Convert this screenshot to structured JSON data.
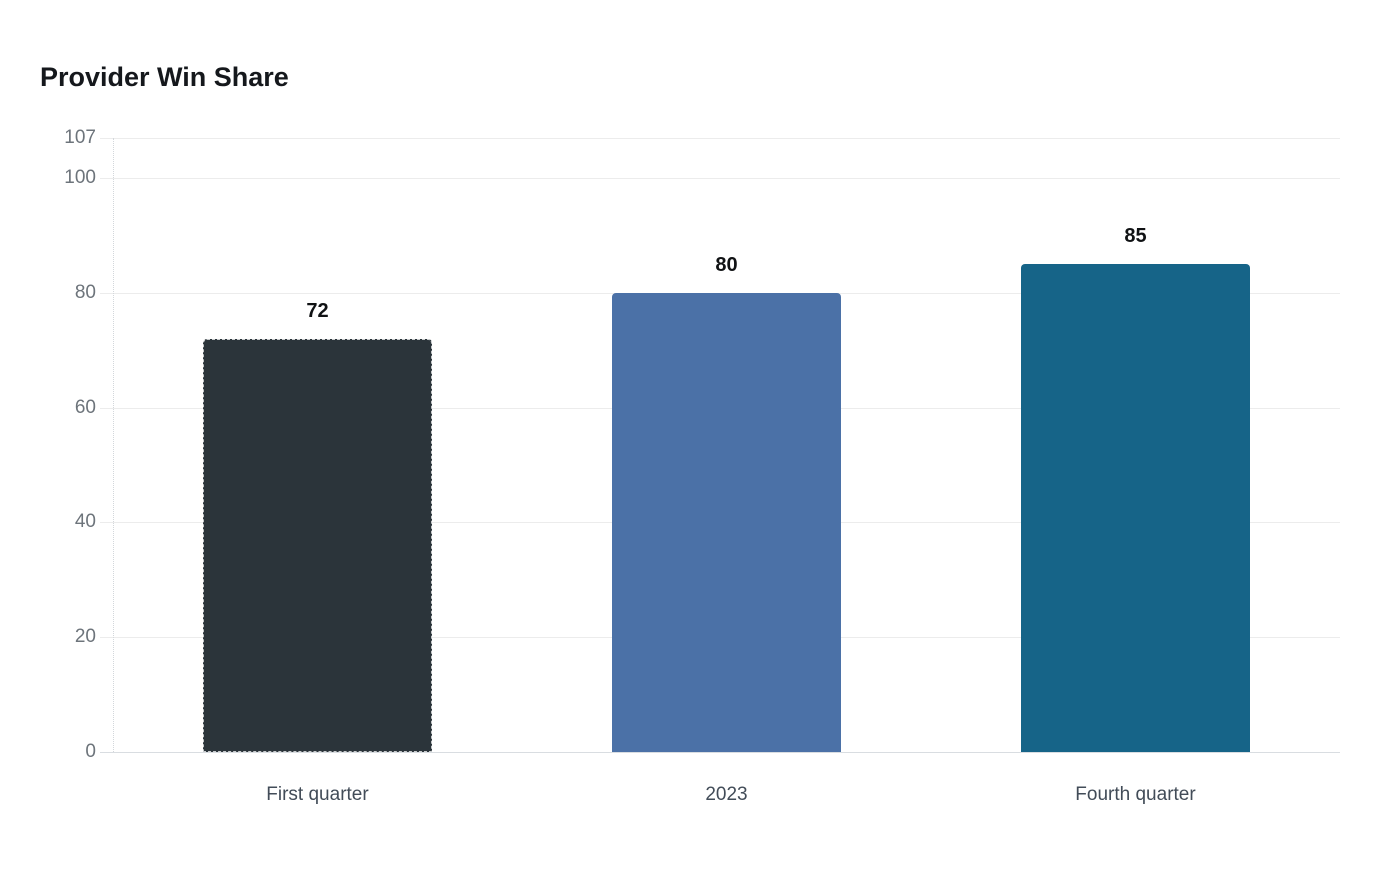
{
  "title": "Provider Win Share",
  "chart_data": {
    "type": "bar",
    "title": "Provider Win Share",
    "categories": [
      "First quarter",
      "2023",
      "Fourth quarter"
    ],
    "values": [
      72,
      80,
      85
    ],
    "value_labels": [
      "72",
      "80",
      "85"
    ],
    "series": [
      {
        "name": "Provider Win Share",
        "values": [
          72,
          80,
          85
        ]
      }
    ],
    "bar_colors": [
      "#2b343a",
      "#4b71a7",
      "#166488"
    ],
    "bar_border_dashed": [
      true,
      false,
      false
    ],
    "xlabel": "",
    "ylabel": "",
    "ylim": [
      0,
      107
    ],
    "yticks": [
      0,
      20,
      40,
      60,
      80,
      100,
      107
    ],
    "grid": true,
    "legend": false
  },
  "style": {
    "background": "#ffffff",
    "grid_color": "#ececec",
    "zero_line_color": "#d9dde1",
    "axis_dotted_color": "#d3d7db",
    "tick_label_color": "#6d747b",
    "x_label_color": "#424c58",
    "value_label_color": "#101214",
    "title_color": "#15181c"
  }
}
